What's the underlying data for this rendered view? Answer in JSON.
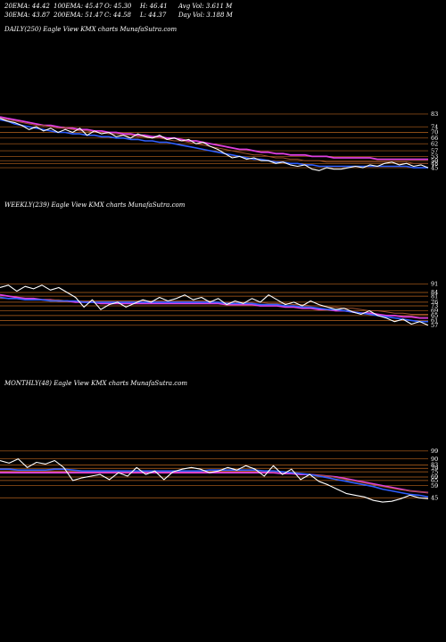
{
  "header": {
    "row1": [
      "20EMA: 44.42",
      "100EMA: 45.47",
      "O: 45.30",
      "H: 46.41",
      "Avg Vol: 3.611 M"
    ],
    "row2": [
      "30EMA: 43.87",
      "200EMA: 51.47",
      "C: 44.58",
      "L: 44.37",
      "Day Vol: 3.188 M"
    ]
  },
  "panels": [
    {
      "title": "DAILY(250) Eagle   View  KMX  charts MunafaSutra.com"
    },
    {
      "title": "WEEKLY(239) Eagle   View  KMX  charts MunafaSutra.com"
    },
    {
      "title": "MONTHLY(48) Eagle   View  KMX  charts MunafaSutra.com"
    }
  ],
  "colors": {
    "background": "#000000",
    "price": "#ffffff",
    "ema_blue": "#2f5fff",
    "ema_magenta": "#e040e0",
    "ema_brown": "#a0522d",
    "level_line": "#b8641e"
  },
  "chart_data": [
    {
      "type": "line",
      "name": "DAILY(250)",
      "ylim": [
        40,
        88
      ],
      "levels": [
        83,
        74,
        70,
        66,
        62,
        57,
        53,
        50,
        48,
        45
      ],
      "series": [
        {
          "values": [
            80,
            78,
            77,
            75,
            72,
            74,
            71,
            73,
            70,
            72,
            70,
            73,
            68,
            71,
            69,
            70,
            67,
            68,
            66,
            69,
            67,
            66,
            68,
            65,
            66,
            64,
            65,
            62,
            63,
            60,
            58,
            55,
            52,
            53,
            51,
            52,
            50,
            50,
            48,
            49,
            47,
            46,
            47,
            44,
            43,
            45,
            44,
            44,
            45,
            46,
            45,
            47,
            46,
            48,
            49,
            47,
            48,
            46,
            47,
            45
          ]
        },
        {
          "values": [
            79,
            78,
            76,
            75,
            74,
            73,
            72,
            71,
            70,
            70,
            69,
            69,
            68,
            68,
            67,
            67,
            66,
            66,
            65,
            65,
            64,
            64,
            63,
            63,
            62,
            61,
            60,
            59,
            58,
            57,
            56,
            55,
            54,
            53,
            52,
            51,
            51,
            50,
            49,
            49,
            48,
            48,
            47,
            47,
            46,
            46,
            46,
            46,
            46,
            46,
            46,
            46,
            46,
            46,
            46,
            46,
            46,
            45,
            45,
            45
          ]
        },
        {
          "values": [
            80,
            79,
            78,
            77,
            76,
            75,
            75,
            74,
            73,
            73,
            72,
            71,
            71,
            70,
            70,
            69,
            69,
            68,
            68,
            67,
            67,
            66,
            66,
            65,
            64,
            64,
            63,
            62,
            61,
            60,
            59,
            58,
            57,
            56,
            55,
            54,
            54,
            53,
            52,
            52,
            51,
            51,
            50,
            50,
            50,
            49,
            49,
            49,
            49,
            49,
            49,
            49,
            49,
            49,
            49,
            49,
            49,
            48,
            48,
            48
          ]
        },
        {
          "values": [
            81,
            80,
            79,
            78,
            77,
            76,
            75,
            75,
            74,
            73,
            73,
            72,
            72,
            71,
            71,
            70,
            70,
            69,
            69,
            68,
            68,
            67,
            67,
            66,
            66,
            65,
            64,
            64,
            63,
            62,
            61,
            60,
            59,
            58,
            58,
            57,
            56,
            56,
            55,
            55,
            54,
            54,
            54,
            53,
            53,
            53,
            52,
            52,
            52,
            52,
            52,
            52,
            51,
            51,
            51,
            51,
            51,
            51,
            51,
            51
          ]
        }
      ]
    },
    {
      "type": "line",
      "name": "WEEKLY(239)",
      "ylim": [
        40,
        95
      ],
      "levels": [
        91,
        84,
        81,
        76,
        73,
        69,
        65,
        61,
        57
      ],
      "series": [
        {
          "values": [
            88,
            90,
            85,
            89,
            87,
            90,
            86,
            88,
            84,
            80,
            72,
            78,
            70,
            74,
            76,
            72,
            75,
            78,
            76,
            80,
            77,
            79,
            82,
            78,
            80,
            76,
            79,
            74,
            77,
            75,
            79,
            76,
            82,
            78,
            74,
            76,
            73,
            77,
            74,
            72,
            70,
            71,
            68,
            66,
            69,
            65,
            63,
            60,
            62,
            58,
            60,
            57
          ]
        },
        {
          "values": [
            80,
            79,
            79,
            78,
            78,
            78,
            77,
            77,
            77,
            77,
            76,
            76,
            76,
            76,
            76,
            76,
            76,
            76,
            76,
            76,
            76,
            76,
            76,
            76,
            76,
            76,
            76,
            75,
            75,
            75,
            75,
            74,
            74,
            74,
            73,
            73,
            72,
            72,
            71,
            70,
            70,
            69,
            68,
            67,
            66,
            65,
            64,
            63,
            62,
            61,
            60,
            60
          ]
        },
        {
          "values": [
            79,
            79,
            79,
            78,
            78,
            78,
            78,
            78,
            77,
            77,
            77,
            77,
            77,
            77,
            77,
            77,
            77,
            77,
            77,
            77,
            77,
            77,
            77,
            77,
            77,
            77,
            76,
            76,
            76,
            76,
            76,
            76,
            75,
            75,
            75,
            74,
            74,
            73,
            73,
            72,
            72,
            71,
            71,
            70,
            69,
            69,
            68,
            67,
            67,
            66,
            66,
            66
          ]
        },
        {
          "values": [
            82,
            81,
            80,
            79,
            79,
            78,
            78,
            77,
            77,
            76,
            76,
            76,
            75,
            75,
            75,
            75,
            75,
            75,
            75,
            75,
            75,
            75,
            75,
            75,
            75,
            75,
            75,
            74,
            74,
            74,
            74,
            73,
            73,
            73,
            72,
            72,
            71,
            71,
            70,
            70,
            69,
            69,
            68,
            67,
            67,
            66,
            65,
            65,
            64,
            64,
            63,
            63
          ]
        }
      ]
    },
    {
      "type": "line",
      "name": "MONTHLY(48)",
      "ylim": [
        35,
        105
      ],
      "levels": [
        99,
        90,
        83,
        79,
        75,
        69,
        65,
        59,
        45
      ],
      "series": [
        {
          "values": [
            88,
            85,
            90,
            80,
            86,
            84,
            88,
            80,
            65,
            68,
            70,
            72,
            66,
            74,
            70,
            80,
            72,
            76,
            66,
            75,
            78,
            80,
            78,
            74,
            76,
            80,
            77,
            82,
            78,
            70,
            82,
            72,
            78,
            66,
            72,
            64,
            60,
            55,
            50,
            48,
            46,
            42,
            40,
            41,
            44,
            48,
            45,
            44
          ]
        },
        {
          "values": [
            78,
            78,
            77,
            77,
            77,
            77,
            78,
            78,
            77,
            76,
            76,
            76,
            76,
            76,
            76,
            76,
            76,
            76,
            76,
            76,
            76,
            76,
            76,
            77,
            77,
            77,
            77,
            77,
            77,
            76,
            76,
            75,
            74,
            73,
            72,
            70,
            68,
            66,
            64,
            62,
            60,
            58,
            55,
            53,
            51,
            49,
            48,
            46
          ]
        },
        {
          "values": [
            76,
            76,
            76,
            76,
            76,
            76,
            76,
            76,
            76,
            76,
            76,
            76,
            76,
            76,
            76,
            76,
            76,
            76,
            76,
            76,
            76,
            76,
            76,
            76,
            76,
            76,
            76,
            76,
            76,
            76,
            75,
            75,
            74,
            73,
            72,
            71,
            70,
            68,
            66,
            64,
            62,
            60,
            58,
            56,
            54,
            53,
            52,
            51
          ]
        },
        {
          "values": [
            74,
            74,
            74,
            74,
            74,
            74,
            74,
            74,
            74,
            74,
            74,
            74,
            74,
            74,
            74,
            74,
            74,
            74,
            74,
            74,
            74,
            74,
            74,
            74,
            74,
            74,
            74,
            74,
            74,
            74,
            74,
            73,
            73,
            72,
            72,
            71,
            70,
            69,
            67,
            65,
            63,
            61,
            59,
            57,
            55,
            53,
            52,
            51
          ]
        }
      ]
    }
  ]
}
